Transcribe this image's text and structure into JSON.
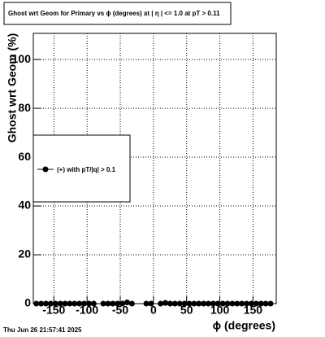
{
  "chart_data": {
    "type": "line",
    "title": "Ghost wrt Geom for Primary vs ϕ (degrees) at |  η  | <= 1.0 at pT > 0.11",
    "x_label": "ϕ  (degrees)",
    "y_label": "Ghost wrt Geom (%)",
    "footer": "Thu Jun 26 21:57:41 2025",
    "x": [
      -176.4,
      -169.2,
      -162,
      -154.8,
      -147.6,
      -140.4,
      -133.2,
      -126,
      -118.8,
      -111.6,
      -104.4,
      -97.2,
      -90,
      -82.8,
      -75.6,
      -68.4,
      -61.2,
      -54,
      -46.8,
      -39.6,
      -32.4,
      -25.2,
      -18,
      -10.8,
      -3.6,
      3.6,
      10.8,
      18,
      25.2,
      32.4,
      39.6,
      46.8,
      54,
      61.2,
      68.4,
      75.6,
      82.8,
      90,
      97.2,
      104.4,
      111.6,
      118.8,
      126,
      133.2,
      140.4,
      147.6,
      154.8,
      162,
      169.2,
      176.4
    ],
    "series": [
      {
        "name": "(+) with pT/|q| > 0.1",
        "color": "#000000",
        "values": [
          0,
          0,
          0,
          0,
          0,
          0,
          0,
          0,
          0,
          0,
          0,
          0,
          0,
          null,
          0,
          0,
          0,
          0,
          0,
          0.5,
          0,
          null,
          null,
          0,
          0,
          null,
          0,
          0.3,
          0,
          0,
          0,
          0,
          0,
          0,
          0,
          0,
          0,
          0,
          0,
          0,
          0,
          0,
          0,
          0,
          0,
          0,
          0,
          0,
          0,
          0
        ]
      }
    ],
    "xlim": [
      -181,
      185
    ],
    "ylim": [
      0,
      110.7
    ],
    "xticks": [
      -150,
      -100,
      -50,
      0,
      50,
      100,
      150
    ],
    "yticks": [
      0,
      20,
      40,
      60,
      80,
      100
    ],
    "grid": true
  }
}
